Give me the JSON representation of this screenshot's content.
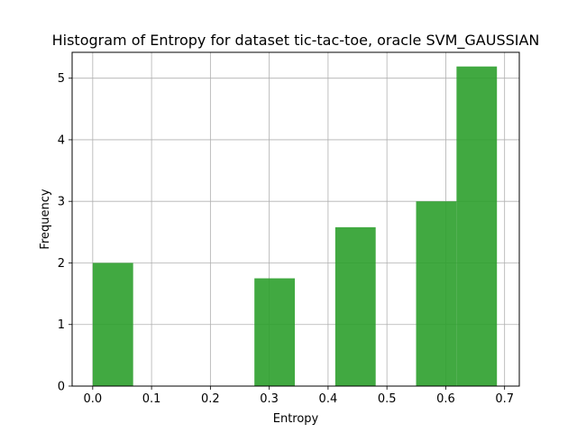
{
  "chart_data": {
    "type": "bar",
    "title": "Histogram of Entropy for dataset tic-tac-toe, oracle SVM_GAUSSIAN",
    "xlabel": "Entropy",
    "ylabel": "Frequency",
    "xlim": [
      -0.035,
      0.725
    ],
    "ylim": [
      0,
      5.42
    ],
    "x_ticks": [
      0.0,
      0.1,
      0.2,
      0.3,
      0.4,
      0.5,
      0.6,
      0.7
    ],
    "x_tick_labels": [
      "0.0",
      "0.1",
      "0.2",
      "0.3",
      "0.4",
      "0.5",
      "0.6",
      "0.7"
    ],
    "y_ticks": [
      0,
      1,
      2,
      3,
      4,
      5
    ],
    "y_tick_labels": [
      "0",
      "1",
      "2",
      "3",
      "4",
      "5"
    ],
    "grid": true,
    "bar_color": "#2ca02c",
    "bar_opacity": 0.9,
    "bins": [
      {
        "x0": 0.0,
        "x1": 0.0687,
        "value": 2.0
      },
      {
        "x0": 0.0687,
        "x1": 0.1374,
        "value": 0
      },
      {
        "x0": 0.1374,
        "x1": 0.2061,
        "value": 0
      },
      {
        "x0": 0.2061,
        "x1": 0.2748,
        "value": 0
      },
      {
        "x0": 0.2748,
        "x1": 0.3435,
        "value": 1.75
      },
      {
        "x0": 0.3435,
        "x1": 0.4122,
        "value": 0
      },
      {
        "x0": 0.4122,
        "x1": 0.4809,
        "value": 2.58
      },
      {
        "x0": 0.4809,
        "x1": 0.5496,
        "value": 0
      },
      {
        "x0": 0.5496,
        "x1": 0.6183,
        "value": 3.0
      },
      {
        "x0": 0.6183,
        "x1": 0.687,
        "value": 5.19
      }
    ]
  }
}
